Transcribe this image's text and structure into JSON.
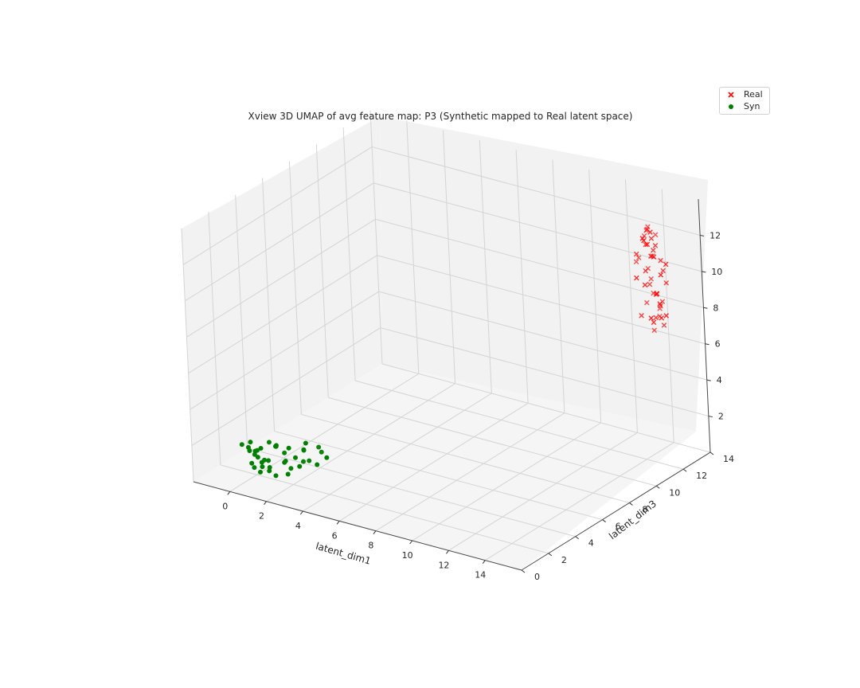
{
  "chart_data": {
    "type": "scatter",
    "projection": "3d",
    "title": "Xview 3D UMAP of avg feature map: P3 (Synthetic mapped to Real latent space)",
    "xlabel": "latent_dim1",
    "ylabel": "latent_dim3",
    "zlabel": "",
    "xlim": [
      -2,
      16
    ],
    "ylim": [
      0,
      14
    ],
    "zlim": [
      0,
      14
    ],
    "xticks": [
      "0",
      "2",
      "4",
      "6",
      "8",
      "10",
      "12",
      "14"
    ],
    "yticks": [
      "0",
      "2",
      "4",
      "6",
      "8",
      "10",
      "12",
      "14"
    ],
    "zticks": [
      "2",
      "4",
      "6",
      "8",
      "10",
      "12"
    ],
    "grid": true,
    "legend_position": "top-right",
    "series": [
      {
        "name": "Real",
        "marker": "x",
        "color": "#ff0000",
        "points": [
          [
            14.5,
            12.2,
            12.9
          ],
          [
            14.3,
            12.4,
            12.6
          ],
          [
            14.7,
            12.1,
            12.7
          ],
          [
            14.1,
            12.6,
            12.4
          ],
          [
            14.9,
            11.9,
            12.5
          ],
          [
            14.4,
            12.0,
            12.2
          ],
          [
            13.9,
            12.7,
            12.0
          ],
          [
            14.8,
            12.3,
            11.9
          ],
          [
            14.2,
            12.5,
            11.7
          ],
          [
            15.0,
            11.8,
            11.6
          ],
          [
            13.8,
            12.9,
            11.4
          ],
          [
            14.6,
            12.2,
            11.3
          ],
          [
            14.0,
            12.1,
            11.1
          ],
          [
            14.9,
            12.5,
            11.0
          ],
          [
            14.3,
            12.8,
            10.9
          ],
          [
            13.7,
            12.3,
            10.7
          ],
          [
            14.5,
            11.9,
            10.6
          ],
          [
            15.1,
            12.2,
            10.4
          ],
          [
            14.1,
            12.6,
            10.3
          ],
          [
            14.7,
            12.9,
            10.2
          ],
          [
            13.9,
            12.0,
            10.0
          ],
          [
            14.4,
            12.4,
            9.9
          ],
          [
            15.0,
            12.7,
            9.7
          ],
          [
            14.2,
            12.2,
            9.6
          ],
          [
            14.8,
            12.0,
            9.4
          ],
          [
            14.0,
            12.8,
            9.3
          ],
          [
            14.6,
            12.5,
            9.1
          ],
          [
            15.2,
            12.1,
            9.0
          ],
          [
            14.3,
            12.9,
            8.8
          ],
          [
            14.9,
            12.3,
            8.7
          ],
          [
            14.1,
            12.4,
            8.5
          ],
          [
            14.7,
            12.6,
            8.4
          ],
          [
            15.3,
            12.2,
            8.2
          ],
          [
            14.5,
            12.8,
            8.1
          ],
          [
            14.0,
            12.1,
            7.9
          ],
          [
            14.8,
            12.5,
            7.8
          ],
          [
            14.4,
            12.9,
            7.6
          ],
          [
            15.0,
            12.4,
            7.5
          ],
          [
            14.2,
            12.7,
            7.3
          ],
          [
            14.6,
            12.2,
            7.2
          ],
          [
            14.9,
            12.0,
            11.8
          ],
          [
            14.1,
            12.3,
            12.1
          ],
          [
            14.6,
            12.6,
            12.3
          ],
          [
            13.8,
            12.2,
            11.2
          ],
          [
            15.1,
            12.6,
            10.8
          ],
          [
            14.4,
            12.7,
            8.9
          ],
          [
            14.8,
            12.1,
            8.0
          ],
          [
            14.3,
            12.4,
            7.7
          ]
        ]
      },
      {
        "name": "Syn",
        "marker": "o",
        "color": "#008000",
        "points": [
          [
            -0.6,
            1.8,
            1.6
          ],
          [
            -0.4,
            2.0,
            1.4
          ],
          [
            -0.2,
            1.9,
            1.8
          ],
          [
            0.0,
            2.1,
            1.3
          ],
          [
            -0.5,
            2.2,
            1.1
          ],
          [
            0.2,
            1.7,
            1.5
          ],
          [
            -0.3,
            2.3,
            0.9
          ],
          [
            0.1,
            2.0,
            1.0
          ],
          [
            -0.1,
            1.8,
            0.7
          ],
          [
            0.3,
            2.2,
            0.8
          ],
          [
            0.0,
            2.4,
            0.5
          ],
          [
            0.4,
            1.9,
            0.6
          ],
          [
            -0.2,
            2.1,
            0.3
          ],
          [
            0.5,
            2.3,
            0.4
          ],
          [
            0.2,
            2.0,
            0.2
          ],
          [
            0.6,
            2.1,
            0.9
          ],
          [
            0.8,
            2.4,
            1.6
          ],
          [
            1.0,
            2.2,
            1.8
          ],
          [
            1.2,
            2.5,
            1.3
          ],
          [
            1.4,
            2.3,
            1.0
          ],
          [
            1.1,
            2.6,
            0.7
          ],
          [
            1.6,
            2.4,
            0.6
          ],
          [
            1.3,
            2.7,
            1.5
          ],
          [
            1.8,
            2.5,
            1.2
          ],
          [
            2.0,
            2.8,
            0.9
          ],
          [
            2.2,
            2.6,
            1.7
          ],
          [
            1.7,
            2.9,
            0.5
          ],
          [
            2.4,
            2.7,
            1.1
          ],
          [
            2.6,
            3.0,
            0.8
          ],
          [
            2.1,
            2.9,
            1.9
          ],
          [
            2.8,
            3.1,
            1.5
          ],
          [
            3.0,
            3.2,
            1.2
          ],
          [
            1.5,
            2.3,
            0.3
          ],
          [
            0.7,
            2.0,
            0.4
          ],
          [
            0.9,
            2.2,
            0.1
          ],
          [
            -0.1,
            2.5,
            1.2
          ],
          [
            0.3,
            2.6,
            1.6
          ],
          [
            0.6,
            2.7,
            1.4
          ],
          [
            1.9,
            3.0,
            1.4
          ],
          [
            2.5,
            3.3,
            1.6
          ]
        ]
      }
    ]
  }
}
